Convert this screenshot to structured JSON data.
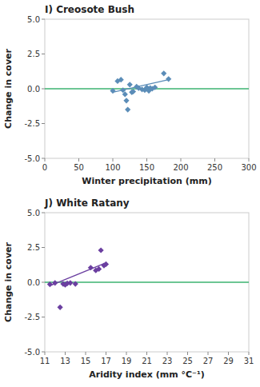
{
  "chart_data": [
    {
      "type": "scatter",
      "title": "I) Creosote Bush",
      "xlabel": "Winter precipitation (mm)",
      "ylabel": "Change in cover",
      "xlim": [
        0,
        300
      ],
      "xticks": [
        0,
        50,
        100,
        150,
        200,
        250,
        300
      ],
      "ylim": [
        -5.0,
        5.0
      ],
      "yticks": [
        {
          "value": -5.0,
          "label": "-5.0"
        },
        -2.5,
        {
          "value": 0.0,
          "label": "0.0"
        },
        2.5,
        {
          "value": 5.0,
          "label": "5.0"
        }
      ],
      "grid": false,
      "series": [
        {
          "type": "scatter",
          "marker": "diamond",
          "color": "#5B8DB8",
          "x": [
            100,
            107,
            112,
            115,
            118,
            120,
            122,
            125,
            128,
            130,
            135,
            138,
            143,
            147,
            150,
            153,
            155,
            158,
            162,
            175,
            182
          ],
          "values": [
            -0.15,
            0.55,
            0.65,
            -0.1,
            -0.4,
            -0.85,
            -1.5,
            0.3,
            -0.25,
            -0.2,
            0.15,
            0.05,
            -0.05,
            -0.1,
            0.1,
            -0.15,
            0.05,
            0.0,
            0.1,
            1.1,
            0.7
          ]
        },
        {
          "type": "line",
          "color": "#5B8DB8",
          "x": [
            100,
            182
          ],
          "values": [
            -0.25,
            0.65
          ]
        },
        {
          "type": "hline",
          "color": "#3CB371",
          "values": [
            0.0
          ]
        }
      ]
    },
    {
      "type": "scatter",
      "title": "J) White Ratany",
      "xlabel": "Aridity index (mm °C⁻¹)",
      "ylabel": "Change in cover",
      "xlim": [
        11,
        31
      ],
      "xticks": [
        11,
        13,
        15,
        17,
        19,
        21,
        23,
        25,
        27,
        29,
        31
      ],
      "ylim": [
        -5.0,
        5.0
      ],
      "yticks": [
        {
          "value": -5.0,
          "label": "-5.0"
        },
        -2.5,
        {
          "value": 0.0,
          "label": "0.0"
        },
        2.5,
        {
          "value": 5.0,
          "label": "5.0"
        }
      ],
      "grid": false,
      "series": [
        {
          "type": "scatter",
          "marker": "diamond",
          "color": "#6B3FA0",
          "x": [
            11.5,
            12.0,
            12.5,
            12.8,
            13.0,
            13.2,
            13.5,
            14.0,
            15.5,
            16.0,
            16.3,
            16.5,
            16.8,
            17.0
          ],
          "values": [
            -0.15,
            -0.05,
            -1.8,
            -0.12,
            -0.18,
            -0.08,
            -0.05,
            -0.12,
            1.05,
            0.85,
            0.95,
            2.3,
            1.2,
            1.3
          ]
        },
        {
          "type": "line",
          "color": "#6B3FA0",
          "x": [
            11.5,
            17.0
          ],
          "values": [
            -0.25,
            1.4
          ]
        },
        {
          "type": "hline",
          "color": "#3CB371",
          "values": [
            0.0
          ]
        }
      ]
    }
  ]
}
